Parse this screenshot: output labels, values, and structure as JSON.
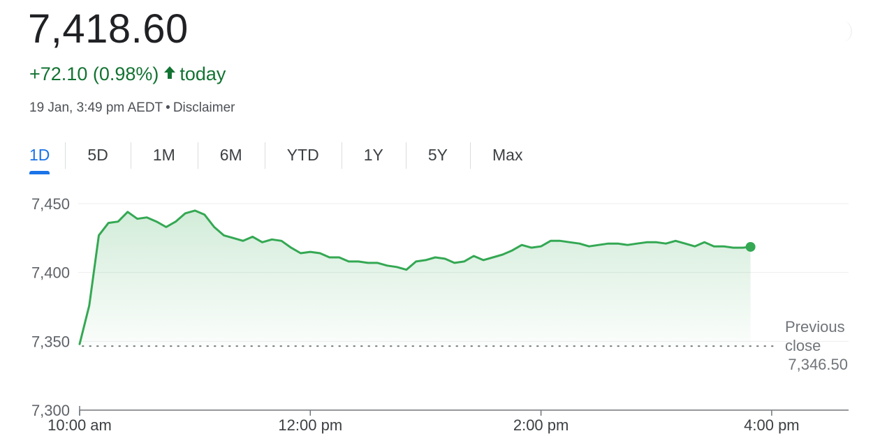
{
  "quote": {
    "price": "7,418.60",
    "change": "+72.10 (0.98%)",
    "change_suffix": "today",
    "timestamp": "19 Jan, 3:49 pm AEDT",
    "separator": "•",
    "disclaimer": "Disclaimer"
  },
  "tabs": [
    {
      "label": "1D",
      "active": true
    },
    {
      "label": "5D",
      "active": false
    },
    {
      "label": "1M",
      "active": false
    },
    {
      "label": "6M",
      "active": false
    },
    {
      "label": "YTD",
      "active": false
    },
    {
      "label": "1Y",
      "active": false
    },
    {
      "label": "5Y",
      "active": false
    },
    {
      "label": "Max",
      "active": false
    }
  ],
  "colors": {
    "line": "#34a853",
    "positive_text": "#137333",
    "accent": "#1a73e8",
    "grid": "#eeeeee",
    "axis": "#70757a"
  },
  "chart_data": {
    "type": "area",
    "x_unit": "time",
    "ylim": [
      7300,
      7450
    ],
    "y_ticks": [
      7450,
      7400,
      7350,
      7300
    ],
    "y_tick_labels": [
      "7,450",
      "7,400",
      "7,350",
      "7,300"
    ],
    "x_ticks": [
      "10:00",
      "12:00",
      "14:00",
      "16:00"
    ],
    "x_tick_labels": [
      "10:00 am",
      "12:00 pm",
      "2:00 pm",
      "4:00 pm"
    ],
    "x_range": [
      "10:00",
      "16:40"
    ],
    "grid": "horizontal",
    "previous_close": {
      "value": 7346.5,
      "label_line1": "Previous",
      "label_line2": "close",
      "value_label": "7,346.50"
    },
    "series": [
      {
        "x": [
          "10:00",
          "10:05",
          "10:10",
          "10:15",
          "10:20",
          "10:25",
          "10:30",
          "10:35",
          "10:40",
          "10:45",
          "10:50",
          "10:55",
          "11:00",
          "11:05",
          "11:10",
          "11:15",
          "11:20",
          "11:25",
          "11:30",
          "11:35",
          "11:40",
          "11:45",
          "11:50",
          "11:55",
          "12:00",
          "12:05",
          "12:10",
          "12:15",
          "12:20",
          "12:25",
          "12:30",
          "12:35",
          "12:40",
          "12:45",
          "12:50",
          "12:55",
          "13:00",
          "13:05",
          "13:10",
          "13:15",
          "13:20",
          "13:25",
          "13:30",
          "13:35",
          "13:40",
          "13:45",
          "13:50",
          "13:55",
          "14:00",
          "14:05",
          "14:10",
          "14:15",
          "14:20",
          "14:25",
          "14:30",
          "14:35",
          "14:40",
          "14:45",
          "14:50",
          "14:55",
          "15:00",
          "15:05",
          "15:10",
          "15:15",
          "15:20",
          "15:25",
          "15:30",
          "15:35",
          "15:40",
          "15:45",
          "15:49"
        ],
        "y": [
          7348,
          7376,
          7427,
          7436,
          7437,
          7444,
          7439,
          7440,
          7437,
          7433,
          7437,
          7443,
          7445,
          7442,
          7433,
          7427,
          7425,
          7423,
          7426,
          7422,
          7424,
          7423,
          7418,
          7414,
          7415,
          7414,
          7411,
          7411,
          7408,
          7408,
          7407,
          7407,
          7405,
          7404,
          7402,
          7408,
          7409,
          7411,
          7410,
          7407,
          7408,
          7412,
          7409,
          7411,
          7413,
          7416,
          7420,
          7418,
          7419,
          7423,
          7423,
          7422,
          7421,
          7419,
          7420,
          7421,
          7421,
          7420,
          7421,
          7422,
          7422,
          7421,
          7423,
          7421,
          7419,
          7422,
          7419,
          7419,
          7418,
          7418,
          7418.6
        ]
      }
    ]
  }
}
